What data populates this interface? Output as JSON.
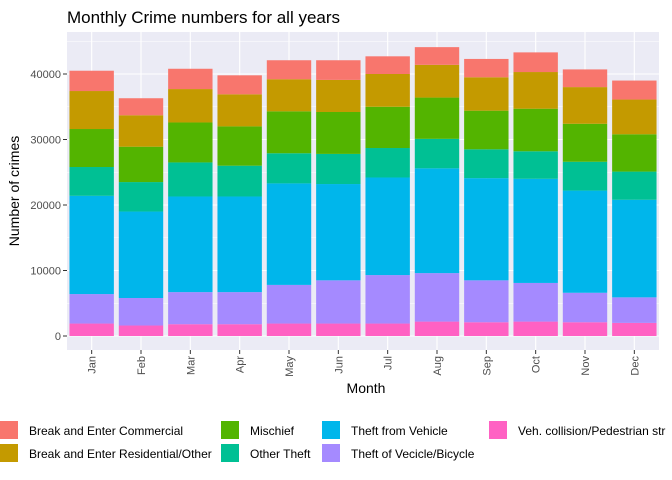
{
  "chart_data": {
    "type": "bar",
    "stacked": true,
    "title": "Monthly Crime numbers for all years",
    "xlabel": "Month",
    "ylabel": "Number of crimes",
    "ylim": [
      0,
      45000
    ],
    "yticks": [
      0,
      10000,
      20000,
      30000,
      40000
    ],
    "ytick_labels": [
      "0",
      "10000",
      "20000",
      "30000",
      "40000"
    ],
    "grid": true,
    "legend_position": "bottom",
    "categories": [
      "Jan",
      "Feb",
      "Mar",
      "Apr",
      "May",
      "Jun",
      "Jul",
      "Aug",
      "Sep",
      "Oct",
      "Nov",
      "Dec"
    ],
    "series": [
      {
        "name": "Veh. collision/Pedestrian str",
        "color": "#FF61C3",
        "values": [
          1900,
          1600,
          1800,
          1800,
          1900,
          1900,
          1900,
          2200,
          2100,
          2200,
          2100,
          2000
        ]
      },
      {
        "name": "Theft of Vecicle/Bicycle",
        "color": "#A58AFF",
        "values": [
          4500,
          4200,
          4900,
          4900,
          5900,
          6600,
          7400,
          7400,
          6400,
          5900,
          4500,
          3900
        ]
      },
      {
        "name": "Theft from Vehicle",
        "color": "#00B6EB",
        "values": [
          15000,
          13200,
          14600,
          14600,
          15500,
          14700,
          14900,
          16000,
          15600,
          15900,
          15600,
          14900
        ]
      },
      {
        "name": "Other Theft",
        "color": "#00C094",
        "values": [
          4400,
          4500,
          5200,
          4700,
          4600,
          4600,
          4500,
          4500,
          4400,
          4200,
          4400,
          4300
        ]
      },
      {
        "name": "Mischief",
        "color": "#53B400",
        "values": [
          5800,
          5400,
          6100,
          6000,
          6400,
          6400,
          6300,
          6300,
          5900,
          6500,
          5800,
          5700
        ]
      },
      {
        "name": "Break and Enter Residential/Other",
        "color": "#C49A00",
        "values": [
          5800,
          4800,
          5100,
          4900,
          4900,
          4900,
          5000,
          5000,
          5100,
          5600,
          5600,
          5300
        ]
      },
      {
        "name": "Break and Enter Commercial",
        "color": "#F8766D",
        "values": [
          3100,
          2600,
          3100,
          2900,
          2900,
          3000,
          2700,
          2700,
          2800,
          3000,
          2700,
          2900
        ]
      }
    ],
    "legend_order": [
      "Break and Enter Commercial",
      "Break and Enter Residential/Other",
      "Mischief",
      "Other Theft",
      "Theft from Vehicle",
      "Theft of Vecicle/Bicycle",
      "Veh. collision/Pedestrian str"
    ]
  }
}
